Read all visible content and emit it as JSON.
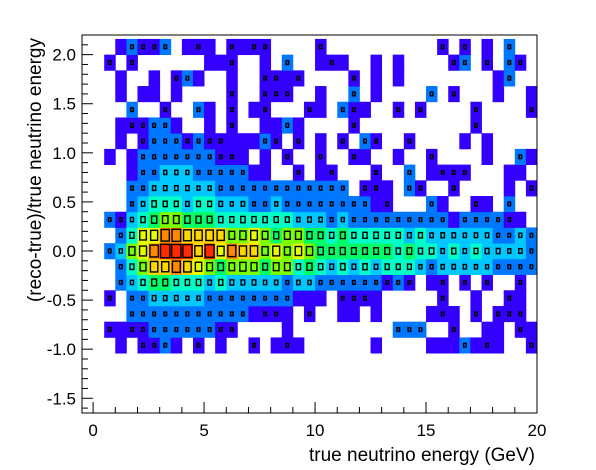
{
  "chart_data": {
    "type": "heatmap",
    "title": "",
    "xlabel": "true neutrino energy (GeV)",
    "ylabel": "(reco-true)/true  neutrino energy",
    "xlim": [
      -0.5,
      20
    ],
    "ylim": [
      -1.65,
      2.2
    ],
    "x_ticks": [
      0,
      5,
      10,
      15,
      20
    ],
    "x_tick_labels": [
      "0",
      "5",
      "10",
      "15",
      "20"
    ],
    "y_ticks": [
      -1.5,
      -1.0,
      -0.5,
      0.0,
      0.5,
      1.0,
      1.5,
      2.0
    ],
    "y_tick_labels": [
      "-1.5",
      "-1.0",
      "-0.5",
      "0.0",
      "0.5",
      "1.0",
      "1.5",
      "2.0"
    ],
    "bin_width_x": 0.5,
    "bin_height_y": 0.16,
    "x_bin_start": 0.5,
    "y_bin_start": -1.04,
    "x_bins": 39,
    "y_bins": 20,
    "colormap": [
      "#6a00ff",
      "#3300ff",
      "#0077ff",
      "#00c8ff",
      "#00ffc8",
      "#00ff66",
      "#7cff00",
      "#e6ff00",
      "#ffd700",
      "#ff8800",
      "#ff2a00"
    ],
    "box_color": "#000000",
    "peak": {
      "x": 3.2,
      "y": 0.0,
      "value": 1.0
    },
    "core_width_y": 0.16,
    "tail_scale_y": 0.28
  }
}
